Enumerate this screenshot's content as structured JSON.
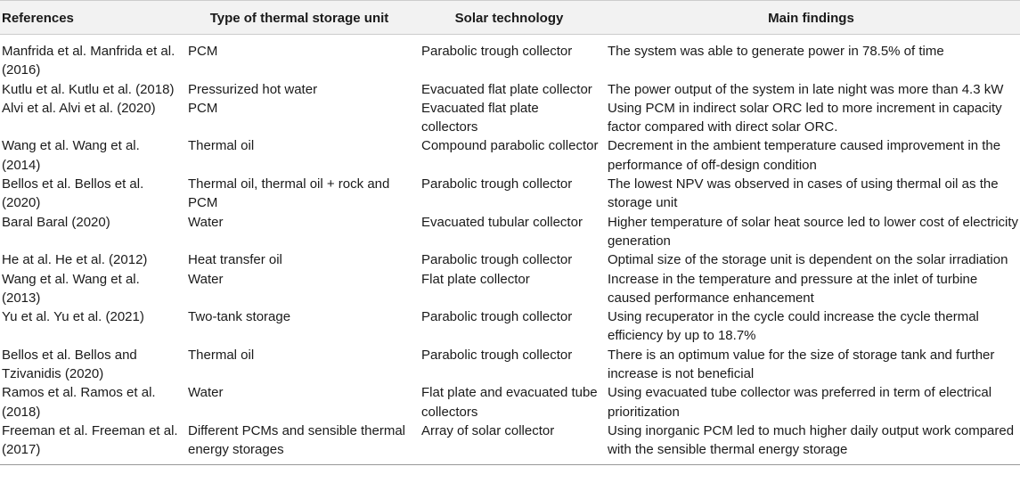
{
  "table": {
    "headers": [
      "References",
      "Type of thermal storage unit",
      "Solar technology",
      "Main findings"
    ],
    "rows": [
      [
        "Manfrida et al. Manfrida et al. (2016)",
        "PCM",
        "Parabolic trough collector",
        "The system was able to generate power in 78.5% of time"
      ],
      [
        "Kutlu et al. Kutlu et al. (2018)",
        "Pressurized hot water",
        "Evacuated flat plate collector",
        "The power output of the system in late night was more than 4.3 kW"
      ],
      [
        "Alvi et al. Alvi et al. (2020)",
        "PCM",
        "Evacuated flat plate collectors",
        "Using PCM in indirect solar ORC led to more increment in capacity factor compared with direct solar ORC."
      ],
      [
        "Wang et al. Wang et al. (2014)",
        "Thermal oil",
        "Compound parabolic collector",
        "Decrement in the ambient temperature caused improvement in the performance of off-design condition"
      ],
      [
        "Bellos et al. Bellos et al. (2020)",
        "Thermal oil, thermal oil + rock and PCM",
        "Parabolic trough collector",
        "The lowest NPV was observed in cases of using thermal oil as the storage unit"
      ],
      [
        "Baral Baral (2020)",
        "Water",
        "Evacuated tubular collector",
        "Higher temperature of solar heat source led to lower cost of electricity generation"
      ],
      [
        "He at al. He et al. (2012)",
        "Heat transfer oil",
        "Parabolic trough collector",
        "Optimal size of the storage unit is dependent on the solar irradiation"
      ],
      [
        "Wang et al. Wang et al. (2013)",
        "Water",
        "Flat plate collector",
        "Increase in the temperature and pressure at the inlet of turbine caused performance enhancement"
      ],
      [
        "Yu et al. Yu et al. (2021)",
        "Two-tank storage",
        "Parabolic trough collector",
        "Using recuperator in the cycle could increase the cycle thermal efficiency by up to 18.7%"
      ],
      [
        "Bellos et al. Bellos and Tzivanidis (2020)",
        "Thermal oil",
        "Parabolic trough collector",
        "There is an optimum value for the size of storage tank and further increase is not beneficial"
      ],
      [
        "Ramos et al. Ramos et al. (2018)",
        "Water",
        "Flat plate and evacuated tube collectors",
        "Using evacuated tube collector was preferred in term of electrical prioritization"
      ],
      [
        "Freeman et al. Freeman et al. (2017)",
        "Different PCMs and sensible thermal energy storages",
        "Array of solar collector",
        "Using inorganic PCM led to much higher daily output work compared with the sensible thermal energy storage"
      ]
    ]
  }
}
